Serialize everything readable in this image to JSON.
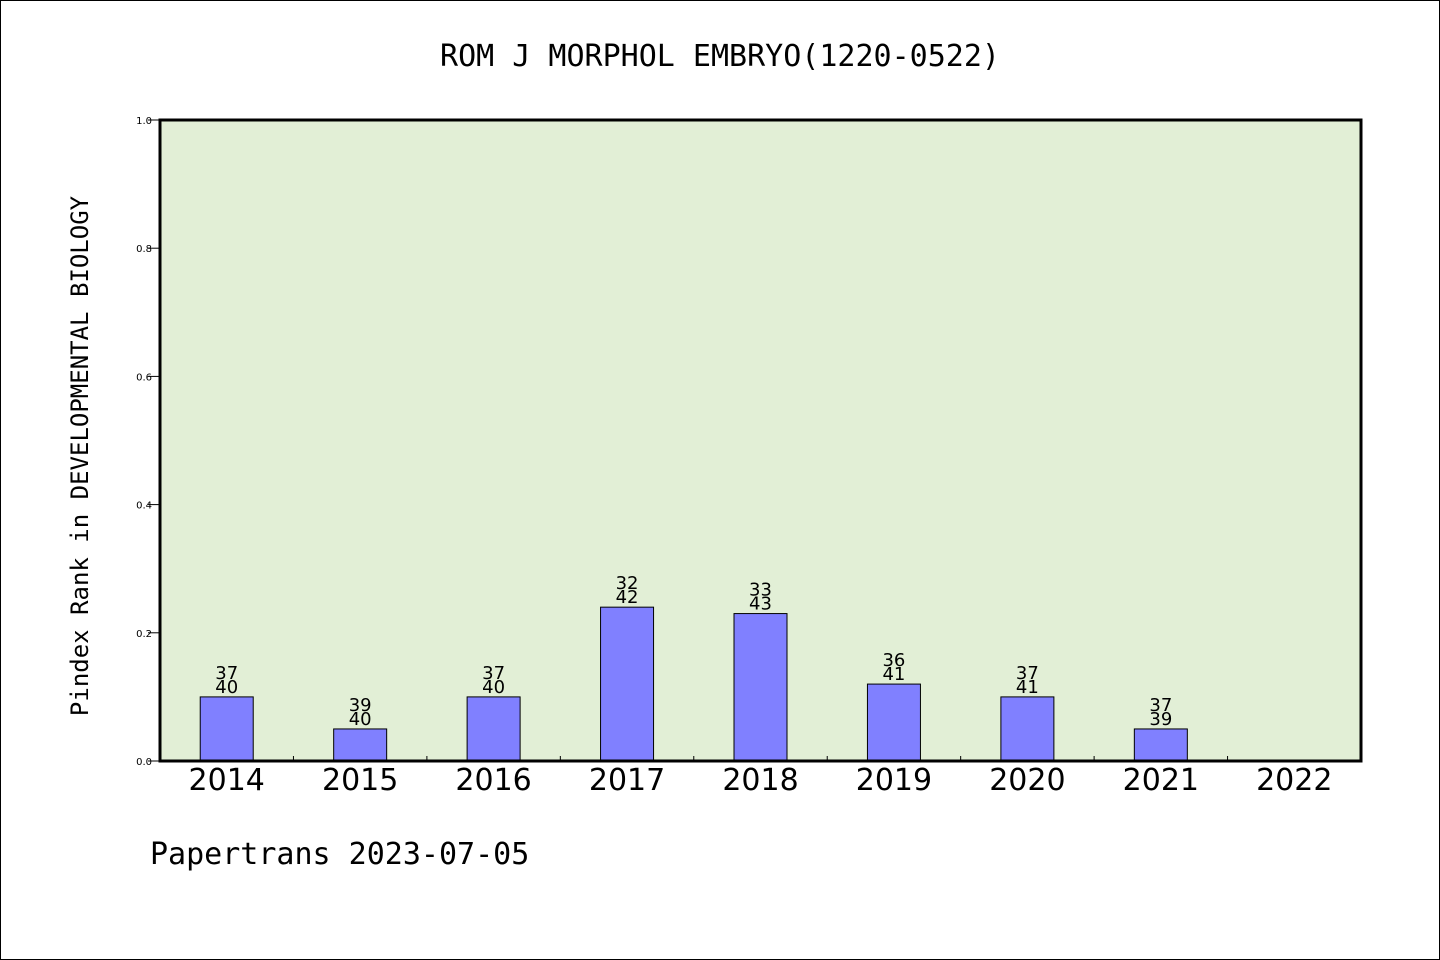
{
  "chart_data": {
    "type": "bar",
    "title": "ROM J MORPHOL EMBRYO(1220-0522)",
    "xlabel": "",
    "ylabel": "Pindex Rank in DEVELOPMENTAL BIOLOGY",
    "ylim": [
      0,
      1.0
    ],
    "yticks": [
      "0.0",
      "0.2",
      "0.4",
      "0.6",
      "0.8",
      "1.0"
    ],
    "categories": [
      "2014",
      "2015",
      "2016",
      "2017",
      "2018",
      "2019",
      "2020",
      "2021",
      "2022"
    ],
    "values": [
      0.1,
      0.05,
      0.1,
      0.24,
      0.23,
      0.12,
      0.1,
      0.05,
      null
    ],
    "labels_top": [
      "37",
      "39",
      "37",
      "32",
      "33",
      "36",
      "37",
      "37",
      ""
    ],
    "labels_bottom": [
      "40",
      "40",
      "40",
      "42",
      "43",
      "41",
      "41",
      "39",
      ""
    ],
    "grid": false,
    "legend": "none",
    "colors": {
      "bar": "#8080ff",
      "plot_bg": "#e2efd6",
      "axis": "#000000"
    }
  },
  "footer": "Papertrans 2023-07-05"
}
